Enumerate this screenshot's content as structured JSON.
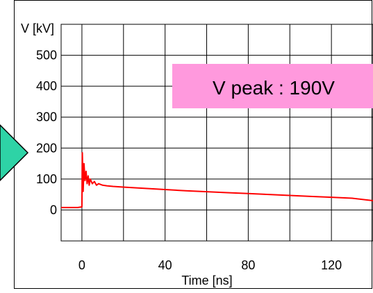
{
  "chart_data": {
    "type": "line",
    "title": "",
    "xlabel": "Time [ns]",
    "ylabel": "V [kV]",
    "xlim": [
      -10,
      140
    ],
    "ylim": [
      -100,
      600
    ],
    "x_ticks": [
      0,
      40,
      80,
      120
    ],
    "y_ticks": [
      0,
      100,
      200,
      300,
      400,
      500
    ],
    "grid": true,
    "annotation": "V peak : 190V",
    "annotation_color": "#ff99dd",
    "series_color": "#ff0000",
    "accent_arrow_color": "#2ed3a6",
    "series": [
      {
        "x": [
          -10,
          -2,
          0,
          0.2,
          0.6,
          1,
          1.5,
          2,
          2.5,
          3,
          3.5,
          4,
          5,
          6,
          7,
          8,
          10,
          12,
          15,
          20,
          25,
          30,
          40,
          50,
          60,
          70,
          80,
          90,
          100,
          110,
          120,
          130,
          140
        ],
        "y": [
          8,
          8,
          10,
          185,
          60,
          150,
          95,
          125,
          85,
          110,
          80,
          100,
          85,
          92,
          80,
          85,
          80,
          78,
          76,
          74,
          72,
          70,
          66,
          62,
          59,
          56,
          53,
          50,
          47,
          44,
          41,
          38,
          30
        ]
      }
    ]
  }
}
